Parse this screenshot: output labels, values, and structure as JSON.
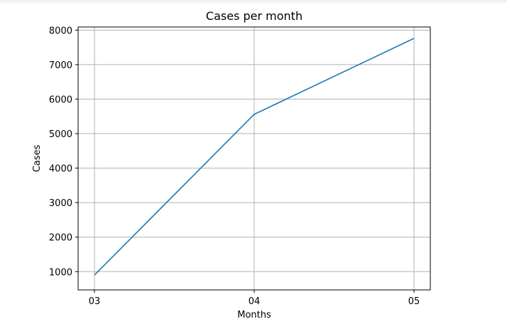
{
  "chart_data": {
    "type": "line",
    "title": "Cases per month",
    "xlabel": "Months",
    "ylabel": "Cases",
    "categories": [
      "03",
      "04",
      "05"
    ],
    "series": [
      {
        "values": [
          900,
          5560,
          7760
        ],
        "color": "#1f77b4"
      }
    ],
    "yticks": [
      1000,
      2000,
      3000,
      4000,
      5000,
      6000,
      7000,
      8000
    ],
    "ylim": [
      470,
      8090
    ],
    "grid": true
  }
}
